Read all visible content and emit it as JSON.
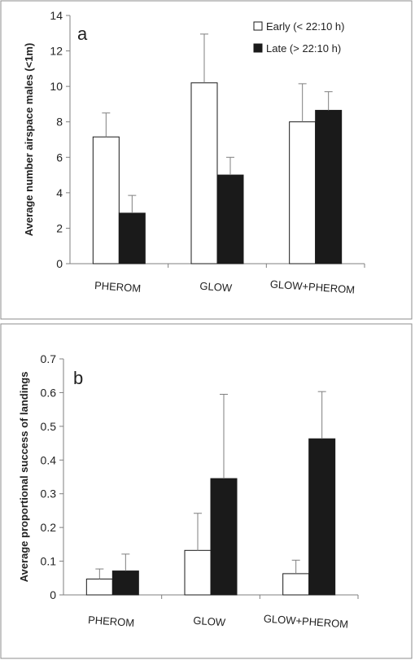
{
  "chart_data": [
    {
      "type": "bar",
      "panel_label": "a",
      "title": "",
      "xlabel": "",
      "ylabel": "Average number airspace males (<1m)",
      "ylim": [
        0,
        14
      ],
      "yticks": [
        0,
        2,
        4,
        6,
        8,
        10,
        12,
        14
      ],
      "categories": [
        "PHEROM",
        "GLOW",
        "GLOW+PHEROM"
      ],
      "legend_position": "top-right",
      "series": [
        {
          "name": "Early (< 22:10 h)",
          "color": "#ffffff",
          "values": [
            7.15,
            10.2,
            8.0
          ],
          "errors": [
            1.35,
            2.75,
            2.15
          ]
        },
        {
          "name": "Late (> 22:10 h)",
          "color": "#1a1a1a",
          "values": [
            2.85,
            5.0,
            8.65
          ],
          "errors": [
            1.0,
            1.0,
            1.05
          ]
        }
      ]
    },
    {
      "type": "bar",
      "panel_label": "b",
      "title": "",
      "xlabel": "",
      "ylabel": "Average proportional success of landings",
      "ylim": [
        0,
        0.7
      ],
      "yticks": [
        "0",
        "0.1",
        "0.2",
        "0.3",
        "0.4",
        "0.5",
        "0.6",
        "0.7"
      ],
      "categories": [
        "PHEROM",
        "GLOW",
        "GLOW+PHEROM"
      ],
      "legend_position": "none",
      "series": [
        {
          "color": "#ffffff",
          "values": [
            0.047,
            0.132,
            0.063
          ],
          "errors": [
            0.03,
            0.11,
            0.04
          ]
        },
        {
          "color": "#1a1a1a",
          "values": [
            0.071,
            0.345,
            0.463
          ],
          "errors": [
            0.05,
            0.25,
            0.14
          ]
        }
      ]
    }
  ]
}
